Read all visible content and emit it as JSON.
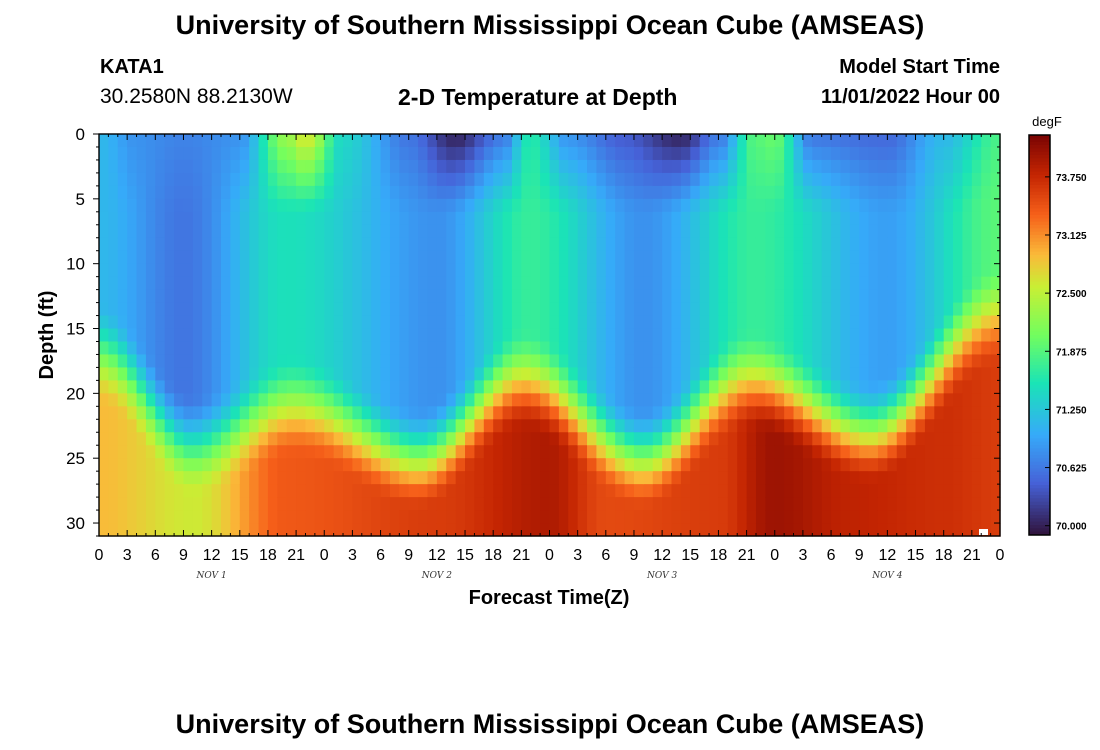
{
  "header": {
    "title": "University of Southern Mississippi Ocean Cube (AMSEAS)",
    "station_id": "KATA1",
    "coordinates": "30.2580N  88.2130W",
    "plot_title": "2-D Temperature at Depth",
    "model_start_label": "Model Start Time",
    "model_start_value": "11/01/2022 Hour 00"
  },
  "footer": {
    "title": "University of Southern Mississippi Ocean Cube (AMSEAS)"
  },
  "chart_data": {
    "type": "heatmap",
    "xlabel": "Forecast Time(Z)",
    "ylabel": "Depth (ft)",
    "x_range_hours": [
      0,
      96
    ],
    "x_ticks": [
      "0",
      "3",
      "6",
      "9",
      "12",
      "15",
      "18",
      "21",
      "0",
      "3",
      "6",
      "9",
      "12",
      "15",
      "18",
      "21",
      "0",
      "3",
      "6",
      "9",
      "12",
      "15",
      "18",
      "21",
      "0",
      "3",
      "6",
      "9",
      "12",
      "15",
      "18",
      "21",
      "0"
    ],
    "day_labels": [
      "NOV 1",
      "NOV 2",
      "NOV 3",
      "NOV 4"
    ],
    "y_range_ft": [
      0,
      31
    ],
    "y_ticks": [
      0,
      5,
      10,
      15,
      20,
      25,
      30
    ],
    "colorbar": {
      "unit": "degF",
      "min": 69.9,
      "max": 74.2,
      "ticks": [
        "70.000",
        "70.625",
        "71.250",
        "71.875",
        "72.500",
        "73.125",
        "73.750"
      ]
    },
    "series": {
      "thermocline_depth_ft": {
        "hours": [
          0,
          10,
          21,
          34,
          45,
          58,
          69,
          82,
          96
        ],
        "values": [
          13,
          20,
          17,
          21,
          15,
          21,
          15,
          19,
          10
        ]
      },
      "surface_temp_degF": {
        "hours": [
          0,
          4,
          9,
          15,
          20,
          22,
          26,
          33,
          38,
          43,
          46,
          50,
          56,
          62,
          66,
          70,
          72,
          76,
          84,
          90,
          96
        ],
        "values": [
          71.1,
          70.8,
          70.7,
          70.8,
          72.3,
          72.7,
          71.4,
          70.6,
          70.0,
          70.6,
          71.6,
          70.8,
          70.4,
          70.0,
          70.6,
          71.9,
          72.0,
          70.6,
          70.5,
          71.1,
          71.8
        ]
      },
      "upper_mix_temp_degF": {
        "hours": [
          0,
          9,
          20,
          36,
          46,
          58,
          70,
          84,
          96
        ],
        "values": [
          71.1,
          70.6,
          71.5,
          70.8,
          71.7,
          70.8,
          71.7,
          70.9,
          71.9
        ]
      },
      "bottom_temp_degF": {
        "hours": [
          0,
          10,
          20,
          36,
          48,
          54,
          66,
          72,
          80,
          90,
          96
        ],
        "values": [
          72.9,
          72.6,
          73.4,
          73.6,
          73.9,
          73.5,
          73.6,
          74.0,
          73.8,
          73.7,
          73.6
        ]
      }
    }
  }
}
